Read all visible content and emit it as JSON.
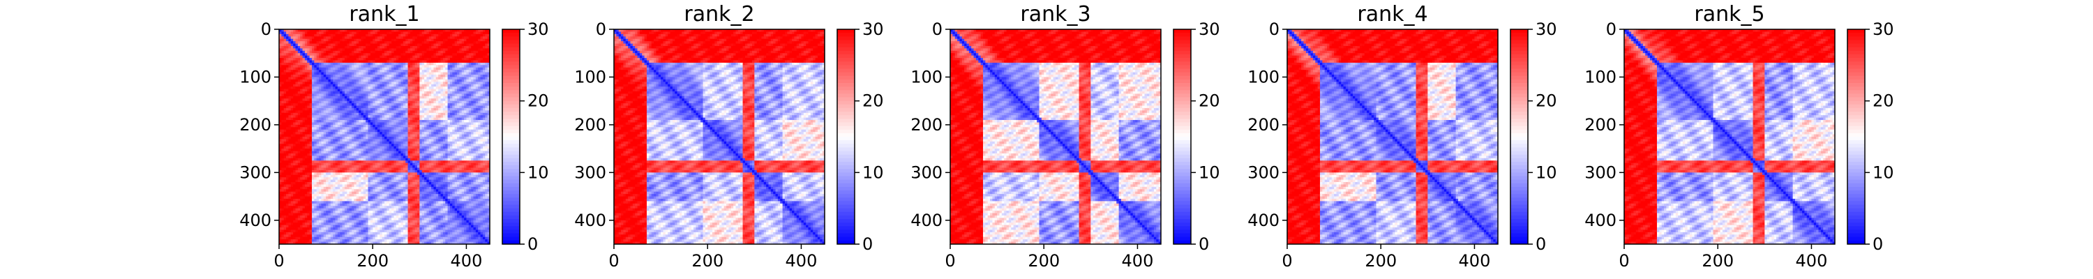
{
  "figure": {
    "panels": [
      {
        "title": "rank_1"
      },
      {
        "title": "rank_2"
      },
      {
        "title": "rank_3"
      },
      {
        "title": "rank_4"
      },
      {
        "title": "rank_5"
      }
    ]
  },
  "colors": {
    "low": "#0000ff",
    "mid": "#ffffff",
    "high": "#ff0000"
  },
  "chart_data": [
    {
      "type": "heatmap",
      "title": "rank_1",
      "colormap": "bwr",
      "x_ticks": [
        0,
        200,
        400
      ],
      "y_ticks": [
        0,
        100,
        200,
        300,
        400
      ],
      "xlim": [
        0,
        450
      ],
      "ylim": [
        450,
        0
      ],
      "colorbar": {
        "range": [
          0,
          30
        ],
        "ticks": [
          0,
          10,
          20,
          30
        ]
      },
      "blocks": [
        [
          0,
          70
        ],
        [
          70,
          190
        ],
        [
          190,
          275
        ],
        [
          275,
          300
        ],
        [
          300,
          360
        ],
        [
          360,
          450
        ]
      ]
    },
    {
      "type": "heatmap",
      "title": "rank_2",
      "colormap": "bwr",
      "x_ticks": [
        0,
        200,
        400
      ],
      "y_ticks": [
        0,
        100,
        200,
        300,
        400
      ],
      "xlim": [
        0,
        450
      ],
      "ylim": [
        450,
        0
      ],
      "colorbar": {
        "range": [
          0,
          30
        ],
        "ticks": [
          0,
          10,
          20,
          30
        ]
      },
      "blocks": [
        [
          0,
          70
        ],
        [
          70,
          190
        ],
        [
          190,
          275
        ],
        [
          275,
          300
        ],
        [
          300,
          360
        ],
        [
          360,
          450
        ]
      ]
    },
    {
      "type": "heatmap",
      "title": "rank_3",
      "colormap": "bwr",
      "x_ticks": [
        0,
        200,
        400
      ],
      "y_ticks": [
        0,
        100,
        200,
        300,
        400
      ],
      "xlim": [
        0,
        450
      ],
      "ylim": [
        450,
        0
      ],
      "colorbar": {
        "range": [
          0,
          30
        ],
        "ticks": [
          0,
          10,
          20,
          30
        ]
      },
      "blocks": [
        [
          0,
          70
        ],
        [
          70,
          190
        ],
        [
          190,
          275
        ],
        [
          275,
          300
        ],
        [
          300,
          360
        ],
        [
          360,
          450
        ]
      ]
    },
    {
      "type": "heatmap",
      "title": "rank_4",
      "colormap": "bwr",
      "x_ticks": [
        0,
        200,
        400
      ],
      "y_ticks": [
        0,
        100,
        200,
        300,
        400
      ],
      "xlim": [
        0,
        450
      ],
      "ylim": [
        450,
        0
      ],
      "colorbar": {
        "range": [
          0,
          30
        ],
        "ticks": [
          0,
          10,
          20,
          30
        ]
      },
      "blocks": [
        [
          0,
          70
        ],
        [
          70,
          190
        ],
        [
          190,
          275
        ],
        [
          275,
          300
        ],
        [
          300,
          360
        ],
        [
          360,
          450
        ]
      ]
    },
    {
      "type": "heatmap",
      "title": "rank_5",
      "colormap": "bwr",
      "x_ticks": [
        0,
        200,
        400
      ],
      "y_ticks": [
        0,
        100,
        200,
        300,
        400
      ],
      "xlim": [
        0,
        450
      ],
      "ylim": [
        450,
        0
      ],
      "colorbar": {
        "range": [
          0,
          30
        ],
        "ticks": [
          0,
          10,
          20,
          30
        ]
      },
      "blocks": [
        [
          0,
          70
        ],
        [
          70,
          190
        ],
        [
          190,
          275
        ],
        [
          275,
          300
        ],
        [
          300,
          360
        ],
        [
          360,
          450
        ]
      ]
    }
  ]
}
